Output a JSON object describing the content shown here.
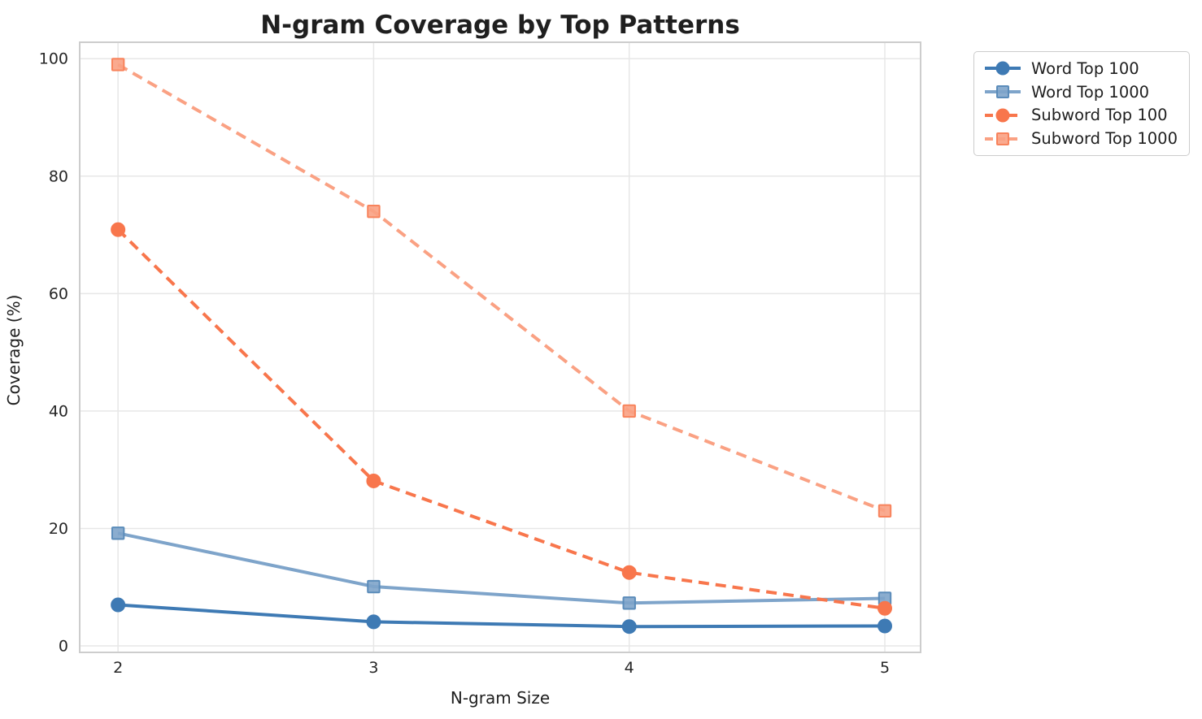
{
  "chart_data": {
    "type": "line",
    "title": "N-gram Coverage by Top Patterns",
    "xlabel": "N-gram Size",
    "ylabel": "Coverage (%)",
    "x": [
      2,
      3,
      4,
      5
    ],
    "xtick_labels": [
      "2",
      "3",
      "4",
      "5"
    ],
    "ytick_values": [
      0,
      20,
      40,
      60,
      80,
      100
    ],
    "ytick_labels": [
      "0",
      "20",
      "40",
      "60",
      "80",
      "100"
    ],
    "xlim": [
      1.85,
      5.14
    ],
    "ylim": [
      -1.1,
      102.8
    ],
    "grid": true,
    "grid_color": "#e7e7e7",
    "spine_color": "#cdcdcd",
    "legend_position": "outside upper right",
    "series": [
      {
        "name": "Word Top 100",
        "values": [
          7.0,
          4.1,
          3.3,
          3.4
        ],
        "color": "#3E7AB4",
        "edge_color": "#3E7AB4",
        "line_style": "solid",
        "marker": "circle"
      },
      {
        "name": "Word Top 1000",
        "values": [
          19.2,
          10.1,
          7.3,
          8.1
        ],
        "color": "#7EA4CA",
        "edge_color": "#5B8CBA",
        "line_style": "solid",
        "marker": "square"
      },
      {
        "name": "Subword Top 100",
        "values": [
          70.9,
          28.1,
          12.5,
          6.4
        ],
        "color": "#F8764C",
        "edge_color": "#F8764C",
        "line_style": "dashed",
        "marker": "circle"
      },
      {
        "name": "Subword Top 1000",
        "values": [
          99.0,
          74.0,
          40.0,
          23.0
        ],
        "color": "#FAA183",
        "edge_color": "#F8835C",
        "line_style": "dashed",
        "marker": "square"
      }
    ]
  }
}
